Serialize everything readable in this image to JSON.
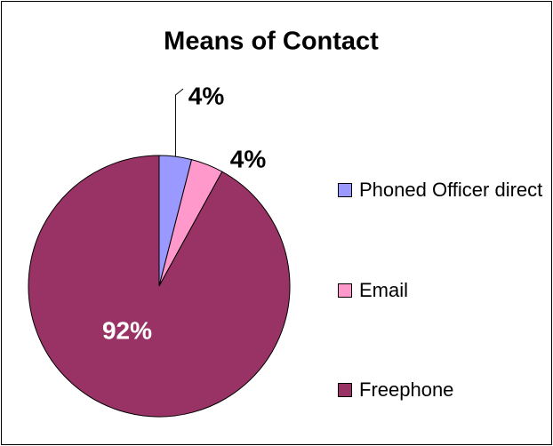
{
  "chart_data": {
    "type": "pie",
    "title": "Means of Contact",
    "categories": [
      "Phoned Officer direct",
      "Email",
      "Freephone"
    ],
    "values": [
      4,
      4,
      92
    ],
    "value_labels": [
      "4%",
      "4%",
      "92%"
    ],
    "colors": [
      "#9999ff",
      "#ff99cc",
      "#993366"
    ],
    "legend": "right"
  }
}
